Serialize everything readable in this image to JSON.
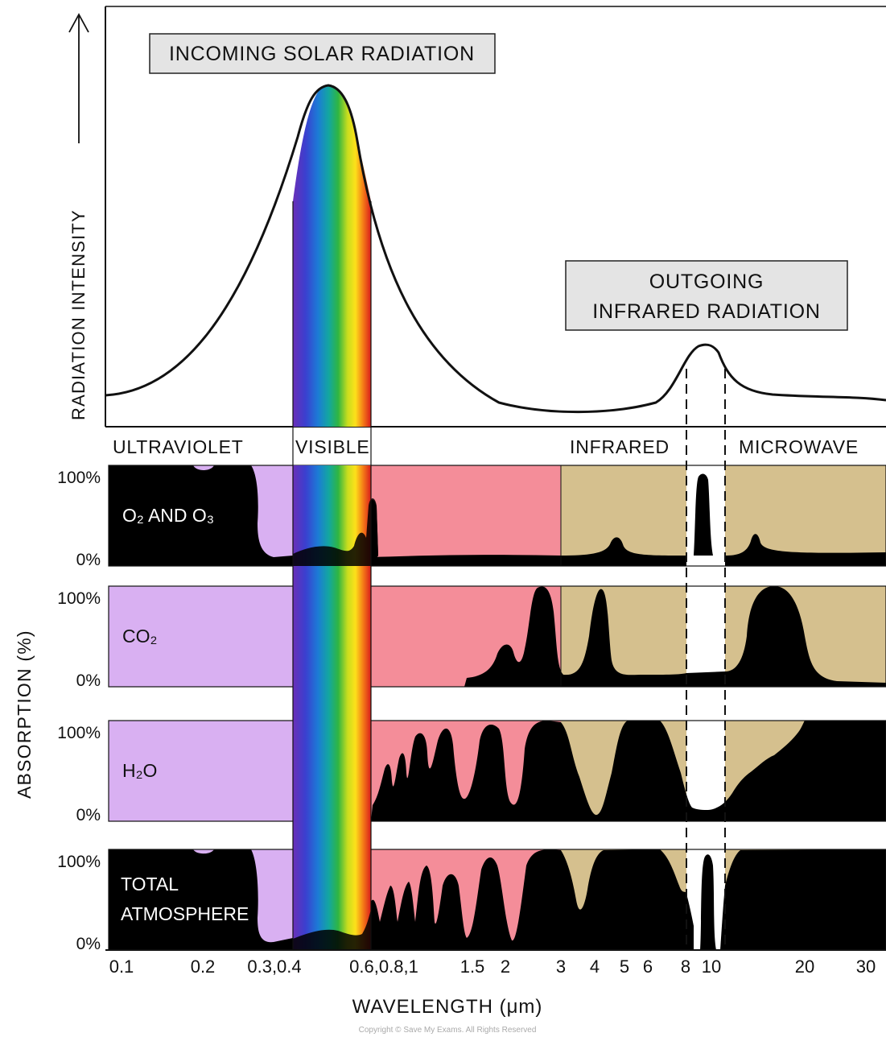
{
  "y_axis_label": "RADIATION INTENSITY",
  "absorption_axis_label": "ABSORPTION (%)",
  "x_axis_label": "WAVELENGTH (μm)",
  "copyright": "Copyright © Save My Exams. All Rights Reserved",
  "callouts": {
    "incoming": "INCOMING SOLAR RADIATION",
    "outgoing_line1": "OUTGOING",
    "outgoing_line2": "INFRARED RADIATION"
  },
  "regions": {
    "ultraviolet": "ULTRAVIOLET",
    "visible": "VISIBLE",
    "infrared": "INFRARED",
    "microwave": "MICROWAVE"
  },
  "panels": [
    {
      "id": "o2o3",
      "label": "O₂ AND O₃",
      "top_tick": "100%",
      "bottom_tick": "0%"
    },
    {
      "id": "co2",
      "label": "CO₂",
      "top_tick": "100%",
      "bottom_tick": "0%"
    },
    {
      "id": "h2o",
      "label": "H₂O",
      "top_tick": "100%",
      "bottom_tick": "0%"
    },
    {
      "id": "total",
      "label_line1": "TOTAL",
      "label_line2": "ATMOSPHERE",
      "top_tick": "100%",
      "bottom_tick": "0%"
    }
  ],
  "x_ticks": [
    "0.1",
    "0.2",
    "0.3,0.4",
    "0.6,0.8,1",
    "1.5",
    "2",
    "3",
    "4",
    "5",
    "6",
    "8",
    "10",
    "20",
    "30"
  ],
  "colors": {
    "ultraviolet": "#d9b0f2",
    "visible_red": "#f48d99",
    "infrared": "#d5c08e",
    "absorption": "#000000",
    "callout_box": "#e4e4e4"
  }
}
